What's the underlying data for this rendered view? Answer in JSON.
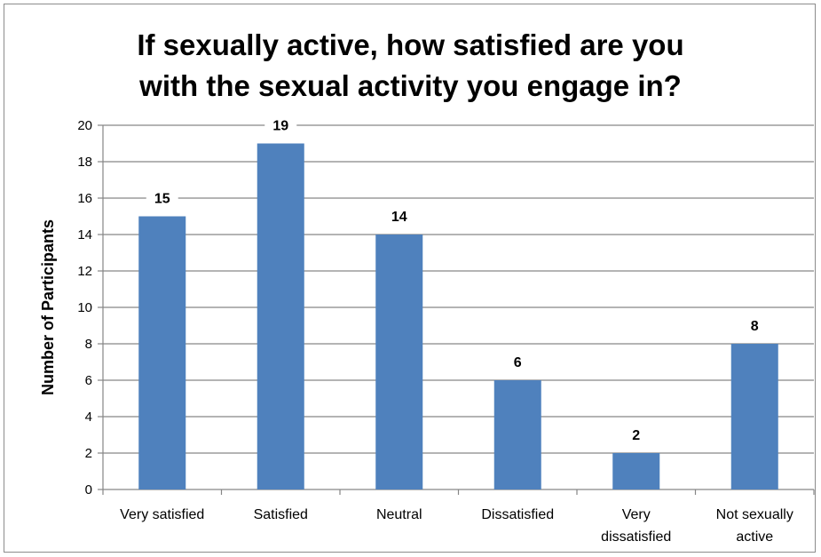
{
  "chart_data": {
    "type": "bar",
    "title_lines": [
      "If sexually active, how satisfied are you",
      "with the sexual activity you engage in?"
    ],
    "ylabel": "Number of Participants",
    "xlabel": "",
    "categories": [
      [
        "Very satisfied"
      ],
      [
        "Satisfied"
      ],
      [
        "Neutral"
      ],
      [
        "Dissatisfied"
      ],
      [
        "Very",
        "dissatisfied"
      ],
      [
        "Not sexually",
        "active"
      ]
    ],
    "values": [
      15,
      19,
      14,
      6,
      2,
      8
    ],
    "ylim": [
      0,
      20
    ],
    "yticks": [
      0,
      2,
      4,
      6,
      8,
      10,
      12,
      14,
      16,
      18,
      20
    ],
    "grid": true,
    "legend": "none",
    "bar_color": "#4f81bd",
    "grid_color": "#868686"
  }
}
